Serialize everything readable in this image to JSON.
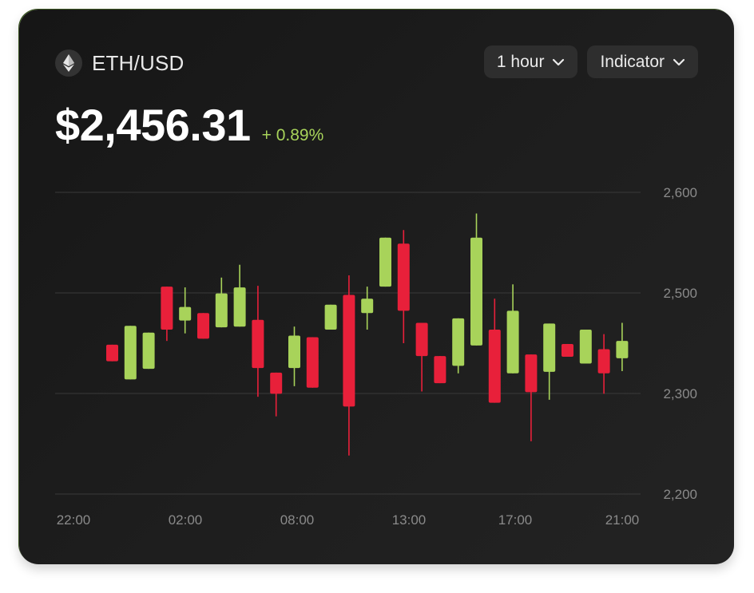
{
  "pair": "ETH/USD",
  "price": "$2,456.31",
  "change": "+ 0.89%",
  "controls": {
    "interval": "1 hour",
    "indicator": "Indicator"
  },
  "colors": {
    "up": "#a8d35a",
    "down": "#e8203a",
    "grid": "#3a3a3a"
  },
  "icons": {
    "asset": "ethereum-icon",
    "dropdown": "chevron-down-icon"
  },
  "chart_data": {
    "type": "candlestick",
    "y_ticks": [
      "2,600",
      "2,500",
      "2,300",
      "2,200"
    ],
    "x_ticks": [
      "22:00",
      "02:00",
      "08:00",
      "13:00",
      "17:00",
      "21:00"
    ],
    "grid": true,
    "candles": [
      {
        "open": 2.398,
        "close": 2.376,
        "high": 2.398,
        "low": 2.376
      },
      {
        "open": 2.352,
        "close": 2.423,
        "high": 2.423,
        "low": 2.352
      },
      {
        "open": 2.366,
        "close": 2.414,
        "high": 2.414,
        "low": 2.366
      },
      {
        "open": 2.475,
        "close": 2.418,
        "high": 2.475,
        "low": 2.403
      },
      {
        "open": 2.43,
        "close": 2.448,
        "high": 2.474,
        "low": 2.413
      },
      {
        "open": 2.44,
        "close": 2.406,
        "high": 2.44,
        "low": 2.406
      },
      {
        "open": 2.421,
        "close": 2.466,
        "high": 2.487,
        "low": 2.421
      },
      {
        "open": 2.422,
        "close": 2.474,
        "high": 2.504,
        "low": 2.422
      },
      {
        "open": 2.431,
        "close": 2.367,
        "high": 2.476,
        "low": 2.329
      },
      {
        "open": 2.361,
        "close": 2.333,
        "high": 2.361,
        "low": 2.303
      },
      {
        "open": 2.367,
        "close": 2.41,
        "high": 2.422,
        "low": 2.343
      },
      {
        "open": 2.408,
        "close": 2.341,
        "high": 2.408,
        "low": 2.341
      },
      {
        "open": 2.418,
        "close": 2.451,
        "high": 2.451,
        "low": 2.418
      },
      {
        "open": 2.464,
        "close": 2.316,
        "high": 2.49,
        "low": 2.251
      },
      {
        "open": 2.44,
        "close": 2.459,
        "high": 2.475,
        "low": 2.418
      },
      {
        "open": 2.475,
        "close": 2.54,
        "high": 2.54,
        "low": 2.475
      },
      {
        "open": 2.532,
        "close": 2.443,
        "high": 2.55,
        "low": 2.4
      },
      {
        "open": 2.427,
        "close": 2.383,
        "high": 2.427,
        "low": 2.336
      },
      {
        "open": 2.383,
        "close": 2.347,
        "high": 2.383,
        "low": 2.347
      },
      {
        "open": 2.37,
        "close": 2.433,
        "high": 2.433,
        "low": 2.36
      },
      {
        "open": 2.397,
        "close": 2.54,
        "high": 2.572,
        "low": 2.397
      },
      {
        "open": 2.418,
        "close": 2.321,
        "high": 2.459,
        "low": 2.321
      },
      {
        "open": 2.36,
        "close": 2.443,
        "high": 2.478,
        "low": 2.36
      },
      {
        "open": 2.385,
        "close": 2.335,
        "high": 2.385,
        "low": 2.27
      },
      {
        "open": 2.362,
        "close": 2.426,
        "high": 2.426,
        "low": 2.325
      },
      {
        "open": 2.399,
        "close": 2.382,
        "high": 2.399,
        "low": 2.382
      },
      {
        "open": 2.373,
        "close": 2.418,
        "high": 2.418,
        "low": 2.373
      },
      {
        "open": 2.392,
        "close": 2.36,
        "high": 2.412,
        "low": 2.333
      },
      {
        "open": 2.38,
        "close": 2.403,
        "high": 2.427,
        "low": 2.363
      }
    ]
  }
}
